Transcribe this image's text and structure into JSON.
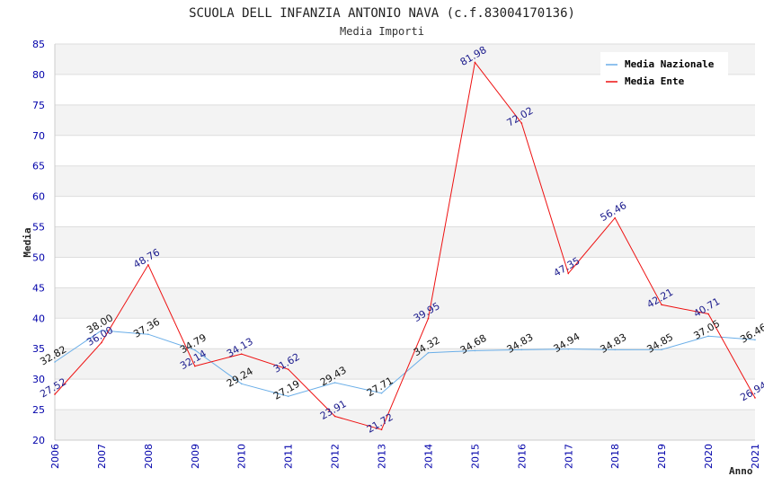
{
  "chart_data": {
    "type": "line",
    "title": "SCUOLA DELL INFANZIA ANTONIO NAVA (c.f.83004170136)",
    "subtitle": "Media Importi",
    "ylabel": "Media",
    "xlabel": "Anno",
    "ylim": [
      20,
      85
    ],
    "yticks": [
      20,
      25,
      30,
      35,
      40,
      45,
      50,
      55,
      60,
      65,
      70,
      75,
      80,
      85
    ],
    "categories": [
      "2006",
      "2007",
      "2008",
      "2009",
      "2010",
      "2011",
      "2012",
      "2013",
      "2014",
      "2015",
      "2016",
      "2017",
      "2018",
      "2019",
      "2020",
      "2021"
    ],
    "series": [
      {
        "name": "Media Nazionale",
        "color": "#6aaee8",
        "values": [
          32.82,
          38.0,
          37.36,
          34.79,
          29.24,
          27.19,
          29.43,
          27.71,
          34.32,
          34.68,
          34.83,
          34.94,
          34.83,
          34.85,
          37.05,
          36.46
        ],
        "labels": [
          "32.82",
          "38.00",
          "37.36",
          "34.79",
          "29.24",
          "27.19",
          "29.43",
          "27.71",
          "34.32",
          "34.68",
          "34.83",
          "34.94",
          "34.83",
          "34.85",
          "37.05",
          "36.46"
        ]
      },
      {
        "name": "Media Ente",
        "color": "#ee1111",
        "values": [
          27.52,
          36.0,
          48.76,
          32.14,
          34.13,
          31.62,
          23.91,
          21.72,
          39.95,
          81.98,
          72.02,
          47.35,
          56.46,
          42.21,
          40.71,
          26.94
        ],
        "labels": [
          "27.52",
          "36.00",
          "48.76",
          "32.14",
          "34.13",
          "31.62",
          "23.91",
          "21.72",
          "39.95",
          "81.98",
          "72.02",
          "47.35",
          "56.46",
          "42.21",
          "40.71",
          "26.94"
        ]
      }
    ],
    "legend_position": "top-right",
    "grid": true
  }
}
